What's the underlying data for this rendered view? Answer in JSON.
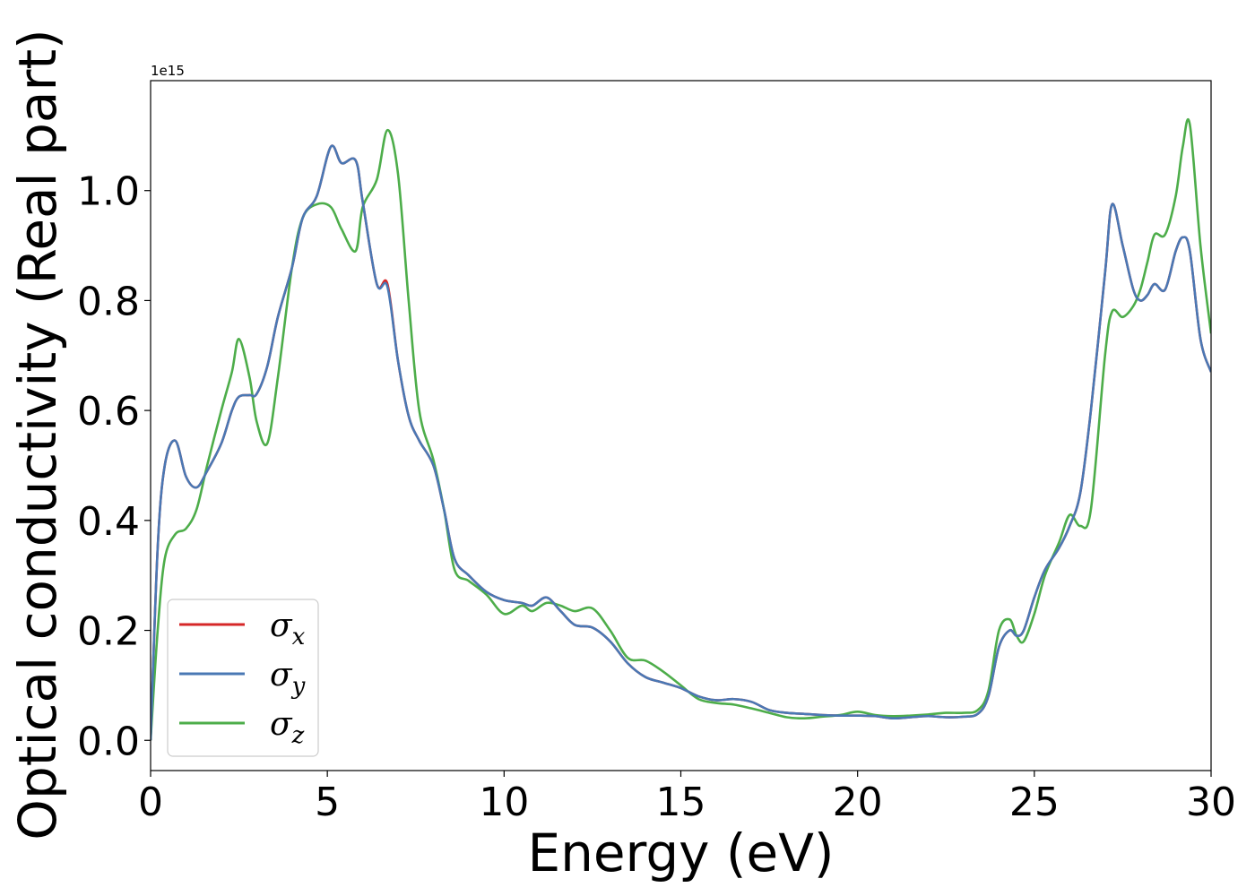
{
  "chart_data": {
    "type": "line",
    "title": "",
    "xlabel": "Energy (eV)",
    "ylabel": "Optical conductivity (Real part)",
    "y_offset_label": "1e15",
    "y_scale_factor": 1000000000000000.0,
    "xlim": [
      0,
      30
    ],
    "ylim": [
      -0.055,
      1.2
    ],
    "xticks": [
      0,
      5,
      10,
      15,
      20,
      25,
      30
    ],
    "xtick_labels": [
      "0",
      "5",
      "10",
      "15",
      "20",
      "25",
      "30"
    ],
    "yticks": [
      0.0,
      0.2,
      0.4,
      0.6,
      0.8,
      1.0
    ],
    "ytick_labels": [
      "0.0",
      "0.2",
      "0.4",
      "0.6",
      "0.8",
      "1.0"
    ],
    "grid": false,
    "legend_position": "lower-left",
    "x": [
      0,
      0.2,
      0.4,
      0.7,
      1.0,
      1.3,
      1.6,
      2.0,
      2.3,
      2.5,
      2.8,
      3.0,
      3.3,
      3.6,
      4.0,
      4.3,
      4.7,
      5.1,
      5.4,
      5.8,
      6.0,
      6.4,
      6.7,
      7.0,
      7.3,
      7.6,
      8.0,
      8.3,
      8.6,
      9.0,
      9.5,
      10.0,
      10.5,
      10.8,
      11.2,
      11.6,
      12.0,
      12.5,
      13.0,
      13.5,
      14.0,
      14.5,
      15.0,
      15.5,
      16.0,
      16.5,
      17.0,
      17.5,
      18.0,
      18.5,
      19.0,
      19.5,
      20.0,
      20.5,
      21.0,
      21.5,
      22.0,
      22.5,
      23.0,
      23.4,
      23.7,
      24.0,
      24.3,
      24.5,
      24.7,
      25.0,
      25.3,
      25.7,
      26.0,
      26.3,
      26.6,
      27.0,
      27.2,
      27.5,
      27.8,
      28.0,
      28.2,
      28.4,
      28.7,
      29.0,
      29.2,
      29.4,
      29.7,
      30.0
    ],
    "series": [
      {
        "name": "σx",
        "label_symbol": "σ",
        "label_sub": "x",
        "color": "#d62728",
        "values": [
          0.0,
          0.35,
          0.5,
          0.545,
          0.48,
          0.46,
          0.49,
          0.54,
          0.6,
          0.625,
          0.628,
          0.63,
          0.68,
          0.77,
          0.86,
          0.95,
          0.99,
          1.08,
          1.05,
          1.055,
          0.98,
          0.83,
          0.83,
          0.69,
          0.59,
          0.545,
          0.5,
          0.42,
          0.33,
          0.3,
          0.27,
          0.255,
          0.25,
          0.245,
          0.26,
          0.235,
          0.21,
          0.205,
          0.18,
          0.14,
          0.115,
          0.105,
          0.095,
          0.08,
          0.073,
          0.075,
          0.07,
          0.055,
          0.05,
          0.048,
          0.046,
          0.045,
          0.045,
          0.044,
          0.04,
          0.042,
          0.044,
          0.042,
          0.043,
          0.048,
          0.08,
          0.17,
          0.2,
          0.19,
          0.2,
          0.26,
          0.31,
          0.35,
          0.39,
          0.45,
          0.6,
          0.85,
          0.975,
          0.9,
          0.82,
          0.8,
          0.81,
          0.83,
          0.82,
          0.89,
          0.915,
          0.89,
          0.73,
          0.67
        ]
      },
      {
        "name": "σy",
        "label_symbol": "σ",
        "label_sub": "y",
        "color": "#4a78b4",
        "values": [
          0.0,
          0.35,
          0.5,
          0.545,
          0.48,
          0.46,
          0.49,
          0.54,
          0.6,
          0.625,
          0.628,
          0.63,
          0.68,
          0.77,
          0.86,
          0.95,
          0.99,
          1.08,
          1.05,
          1.055,
          0.98,
          0.83,
          0.825,
          0.69,
          0.59,
          0.545,
          0.5,
          0.42,
          0.33,
          0.3,
          0.27,
          0.255,
          0.25,
          0.245,
          0.26,
          0.235,
          0.21,
          0.205,
          0.18,
          0.14,
          0.115,
          0.105,
          0.095,
          0.08,
          0.073,
          0.075,
          0.07,
          0.055,
          0.05,
          0.048,
          0.046,
          0.045,
          0.045,
          0.044,
          0.04,
          0.042,
          0.044,
          0.042,
          0.043,
          0.048,
          0.08,
          0.17,
          0.2,
          0.19,
          0.2,
          0.26,
          0.31,
          0.35,
          0.39,
          0.45,
          0.6,
          0.85,
          0.975,
          0.9,
          0.82,
          0.8,
          0.81,
          0.83,
          0.82,
          0.89,
          0.915,
          0.89,
          0.73,
          0.67
        ]
      },
      {
        "name": "σz",
        "label_symbol": "σ",
        "label_sub": "z",
        "color": "#4dad4a",
        "values": [
          0.0,
          0.2,
          0.33,
          0.375,
          0.385,
          0.42,
          0.5,
          0.6,
          0.67,
          0.73,
          0.66,
          0.58,
          0.54,
          0.66,
          0.86,
          0.95,
          0.975,
          0.97,
          0.93,
          0.89,
          0.97,
          1.02,
          1.11,
          1.03,
          0.8,
          0.6,
          0.51,
          0.42,
          0.31,
          0.29,
          0.265,
          0.23,
          0.245,
          0.235,
          0.25,
          0.245,
          0.235,
          0.24,
          0.2,
          0.15,
          0.145,
          0.125,
          0.1,
          0.075,
          0.068,
          0.065,
          0.058,
          0.05,
          0.042,
          0.04,
          0.043,
          0.046,
          0.052,
          0.046,
          0.044,
          0.045,
          0.047,
          0.05,
          0.05,
          0.055,
          0.09,
          0.2,
          0.22,
          0.19,
          0.18,
          0.23,
          0.3,
          0.36,
          0.41,
          0.39,
          0.42,
          0.7,
          0.78,
          0.77,
          0.79,
          0.82,
          0.87,
          0.92,
          0.92,
          0.99,
          1.08,
          1.12,
          0.9,
          0.74
        ]
      }
    ]
  }
}
